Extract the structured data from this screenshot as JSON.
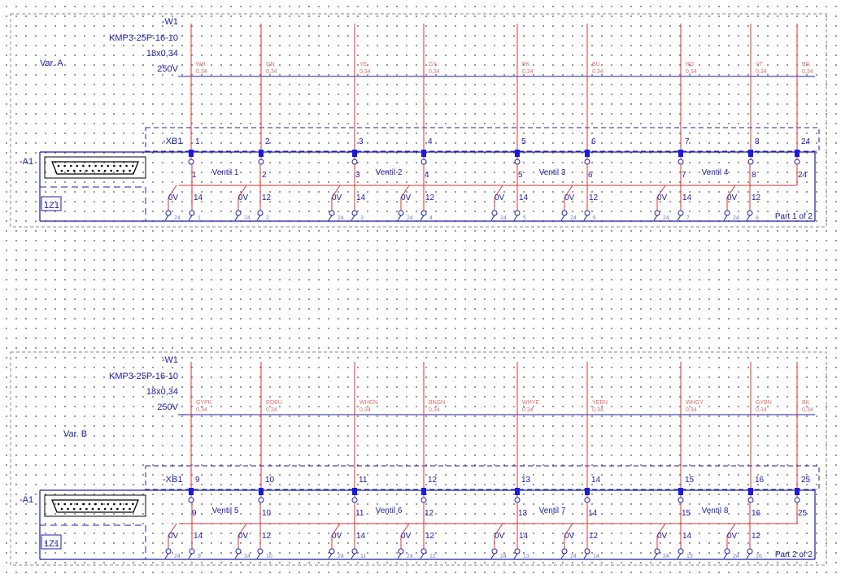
{
  "parts": [
    {
      "cable": {
        "tag": "-W1",
        "type": "KMP3-25P-16-10",
        "section": "18x0,34",
        "voltage": "250V"
      },
      "variant": "Var. A",
      "terminal_tag": "-XB1",
      "device_tag": "-A1",
      "component_tag": "1Z1",
      "conductors": [
        {
          "color": "WH",
          "size": "0,34"
        },
        {
          "color": "GN",
          "size": "0,34"
        },
        {
          "color": "YE",
          "size": "0,34"
        },
        {
          "color": "GY",
          "size": "0,34"
        },
        {
          "color": "PK",
          "size": "0,34"
        },
        {
          "color": "BU",
          "size": "0,34"
        },
        {
          "color": "RD",
          "size": "0,34"
        },
        {
          "color": "VT",
          "size": "0,34"
        },
        {
          "color": "BN",
          "size": "0,34"
        }
      ],
      "terminals": [
        "1",
        "2",
        "3",
        "4",
        "5",
        "6",
        "7",
        "8",
        "24"
      ],
      "valves": [
        "Ventil 1",
        "Ventil 2",
        "Ventil 3",
        "Ventil 4"
      ],
      "coil_pins": [
        "0V",
        "14",
        "0V",
        "12",
        "0V",
        "14",
        "0V",
        "12",
        "0V",
        "14",
        "0V",
        "12",
        "0V",
        "14",
        "0V",
        "12"
      ],
      "bottom_pins": [
        "24",
        "1",
        "24",
        "2",
        "24",
        "3",
        "24",
        "4",
        "24",
        "5",
        "24",
        "6",
        "24",
        "7",
        "24",
        "8"
      ],
      "part_label": "Part 1 of 2"
    },
    {
      "cable": {
        "tag": "-W1",
        "type": "KMP3-25P-16-10",
        "section": "18x0,34",
        "voltage": "250V"
      },
      "variant": "Var. B",
      "terminal_tag": "-XB1",
      "device_tag": "-A1",
      "component_tag": "1Z1",
      "conductors": [
        {
          "color": "GYPK",
          "size": "0,34"
        },
        {
          "color": "RDBU",
          "size": "0,34"
        },
        {
          "color": "WHGN",
          "size": "0,34"
        },
        {
          "color": "BNGN",
          "size": "0,34"
        },
        {
          "color": "WHYE",
          "size": "0,34"
        },
        {
          "color": "YEBN",
          "size": "0,34"
        },
        {
          "color": "WHGY",
          "size": "0,34"
        },
        {
          "color": "GYBN",
          "size": "0,34"
        },
        {
          "color": "BK",
          "size": "0,34"
        }
      ],
      "terminals": [
        "9",
        "10",
        "11",
        "12",
        "13",
        "14",
        "15",
        "16",
        "25"
      ],
      "valves": [
        "Ventil 5",
        "Ventil 6",
        "Ventil 7",
        "Ventil 8"
      ],
      "coil_pins": [
        "0V",
        "14",
        "0V",
        "12",
        "0V",
        "14",
        "0V",
        "12",
        "0V",
        "14",
        "0V",
        "12",
        "0V",
        "14",
        "0V",
        "12"
      ],
      "bottom_pins": [
        "24",
        "9",
        "24",
        "10",
        "24",
        "11",
        "24",
        "12",
        "24",
        "13",
        "24",
        "14",
        "24",
        "15",
        "24",
        "16"
      ],
      "part_label": "Part 2 of 2"
    }
  ],
  "colors": {
    "wire": "#e03030",
    "frame": "#1c1ca8",
    "border": "#8a8a8a",
    "label": "#1c1ca8",
    "dim": "#e07070",
    "pin": "#7a7ad0"
  }
}
